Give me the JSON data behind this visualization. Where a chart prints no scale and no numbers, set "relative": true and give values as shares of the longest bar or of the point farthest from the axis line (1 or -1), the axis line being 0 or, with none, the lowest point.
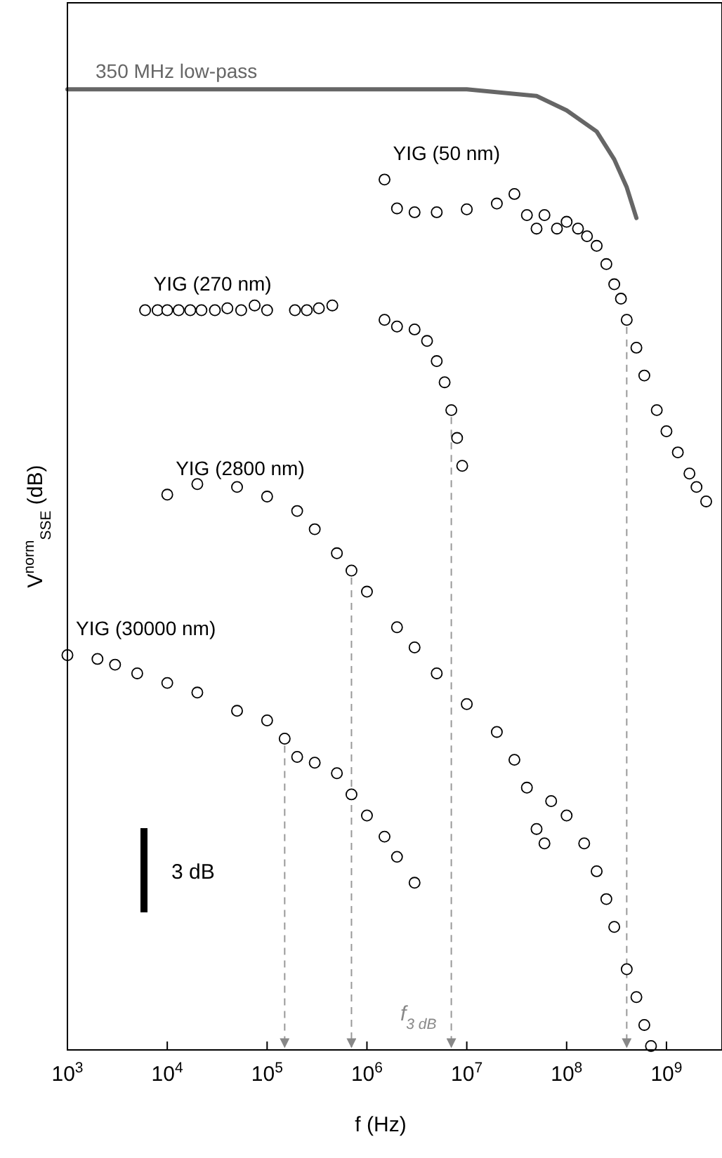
{
  "chart_data": {
    "type": "scatter",
    "xlabel": "f (Hz)",
    "ylabel": "V$^{norm}$$_{SSE}$ (dB)",
    "log": "x",
    "relative": true,
    "xlim": [
      1000,
      3600000000
    ],
    "xticks": [
      {
        "value": 1000,
        "label": "10$^{3}$"
      },
      {
        "value": 10000,
        "label": "10$^{4}$"
      },
      {
        "value": 100000,
        "label": "10$^{5}$"
      },
      {
        "value": 1000000,
        "label": "10$^{6}$"
      },
      {
        "value": 10000000,
        "label": "10$^{7}$"
      },
      {
        "value": 100000000,
        "label": "10$^{8}$"
      },
      {
        "value": 1000000000,
        "label": "10$^{9}$"
      }
    ],
    "tick_labels": "x",
    "grid": false,
    "legend": false,
    "marker": "circle",
    "series": [
      {
        "name": "350 MHz low-pass",
        "type": "line",
        "marker": "none",
        "color": "#666666",
        "x": [
          1000,
          10000000,
          50000000,
          100000000,
          200000000,
          300000000,
          400000000,
          500000000
        ],
        "values": [
          1.0,
          1.0,
          0.993,
          0.978,
          0.956,
          0.927,
          0.898,
          0.866
        ]
      },
      {
        "name": "YIG (50 nm)",
        "color": "#000000",
        "x": [
          1500000,
          2000000,
          3000000,
          5000000,
          10000000,
          20000000,
          30000000,
          40000000,
          50000000,
          60000000,
          80000000,
          100000000,
          130000000,
          160000000,
          200000000,
          250000000,
          300000000,
          350000000,
          400000000,
          500000000,
          600000000,
          800000000,
          1000000000,
          1300000000,
          1700000000,
          2000000000,
          2500000000
        ],
        "values": [
          0.906,
          0.876,
          0.872,
          0.872,
          0.875,
          0.881,
          0.891,
          0.869,
          0.855,
          0.869,
          0.855,
          0.862,
          0.855,
          0.847,
          0.837,
          0.818,
          0.797,
          0.782,
          0.76,
          0.731,
          0.702,
          0.666,
          0.644,
          0.622,
          0.6,
          0.586,
          0.571
        ]
      },
      {
        "name": "YIG (270 nm)",
        "color": "#000000",
        "x": [
          6000,
          8000,
          10000,
          13000,
          17000,
          22000,
          30000,
          40000,
          55000,
          75000,
          100000,
          190000,
          250000,
          330000,
          450000,
          1500000,
          2000000,
          3000000,
          4000000,
          5000000,
          6000000,
          7000000,
          8000000,
          9000000
        ],
        "values": [
          0.77,
          0.77,
          0.77,
          0.77,
          0.77,
          0.77,
          0.77,
          0.772,
          0.77,
          0.775,
          0.77,
          0.77,
          0.77,
          0.772,
          0.775,
          0.76,
          0.753,
          0.75,
          0.738,
          0.717,
          0.695,
          0.666,
          0.637,
          0.608
        ]
      },
      {
        "name": "YIG (2800 nm)",
        "color": "#000000",
        "x": [
          10000,
          20000,
          50000,
          100000,
          200000,
          300000,
          500000,
          700000,
          1000000,
          2000000,
          3000000,
          5000000,
          10000000,
          20000000,
          30000000,
          40000000,
          50000000,
          60000000,
          70000000,
          100000000,
          150000000,
          200000000,
          250000000,
          300000000,
          400000000,
          500000000,
          600000000,
          700000000
        ],
        "values": [
          0.578,
          0.589,
          0.586,
          0.576,
          0.561,
          0.542,
          0.517,
          0.499,
          0.477,
          0.44,
          0.419,
          0.392,
          0.36,
          0.331,
          0.302,
          0.273,
          0.23,
          0.215,
          0.259,
          0.244,
          0.215,
          0.186,
          0.157,
          0.128,
          0.084,
          0.055,
          0.026,
          0.004
        ]
      },
      {
        "name": "YIG (30000 nm)",
        "color": "#000000",
        "x": [
          1000,
          2000,
          3000,
          5000,
          10000,
          20000,
          50000,
          100000,
          150000,
          200000,
          300000,
          500000,
          700000,
          1000000,
          1500000,
          2000000,
          3000000
        ],
        "values": [
          0.411,
          0.407,
          0.401,
          0.392,
          0.382,
          0.372,
          0.353,
          0.343,
          0.324,
          0.305,
          0.299,
          0.288,
          0.266,
          0.244,
          0.222,
          0.201,
          0.174
        ]
      }
    ],
    "ref_lines": [
      {
        "axis": "x",
        "value": 150000,
        "label": null,
        "color": "#999999",
        "line_style": "dashed"
      },
      {
        "axis": "x",
        "value": 700000,
        "label": null,
        "color": "#999999",
        "line_style": "dashed"
      },
      {
        "axis": "x",
        "value": 7000000,
        "label": null,
        "color": "#999999",
        "line_style": "dashed"
      },
      {
        "axis": "x",
        "value": 400000000,
        "label": null,
        "color": "#999999",
        "line_style": "dashed"
      }
    ],
    "annotations": [
      "3 dB",
      "f$_{3 dB}$"
    ]
  }
}
